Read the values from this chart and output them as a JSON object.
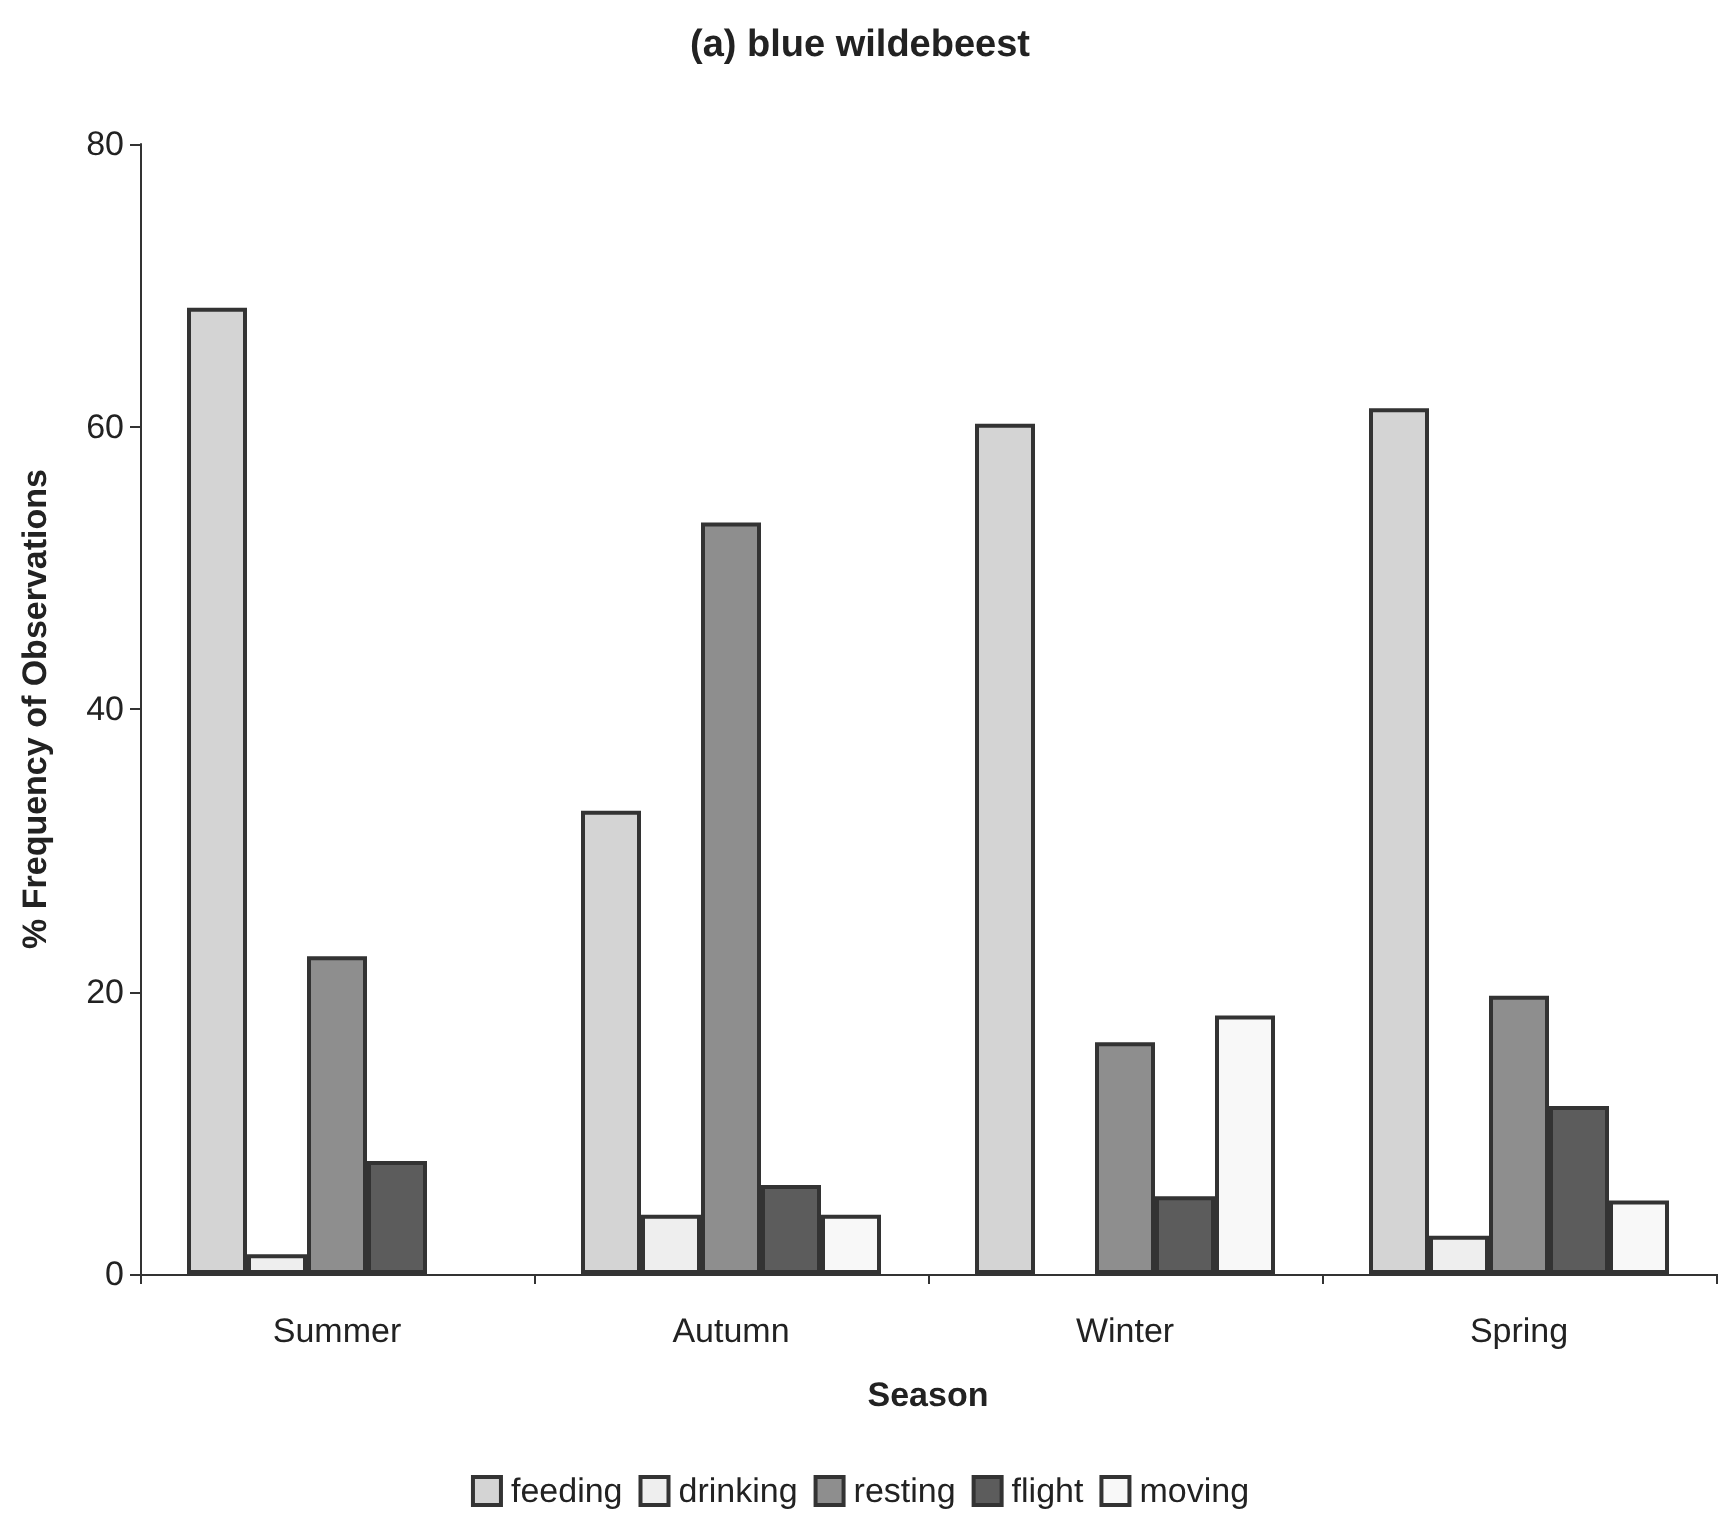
{
  "chart_data": {
    "type": "bar",
    "title": "(a) blue wildebeest",
    "xlabel": "Season",
    "ylabel": "% Frequency of Observations",
    "categories": [
      "Summer",
      "Autumn",
      "Winter",
      "Spring"
    ],
    "series": [
      {
        "name": "feeding",
        "color": "#d4d4d4",
        "values": [
          68.4,
          32.8,
          60.2,
          61.3
        ]
      },
      {
        "name": "drinking",
        "color": "#eeeeee",
        "values": [
          1.4,
          4.2,
          null,
          2.7
        ]
      },
      {
        "name": "resting",
        "color": "#8e8e8e",
        "values": [
          22.5,
          53.2,
          16.4,
          19.7
        ]
      },
      {
        "name": "flight",
        "color": "#5c5c5c",
        "values": [
          8.0,
          6.3,
          5.5,
          11.9
        ]
      },
      {
        "name": "moving",
        "color": "#f8f8f8",
        "values": [
          null,
          4.2,
          18.3,
          5.2
        ]
      }
    ],
    "ylim": [
      0,
      80
    ],
    "yticks": [
      0,
      20,
      40,
      60,
      80
    ],
    "grid": false,
    "legend": "bottom"
  }
}
